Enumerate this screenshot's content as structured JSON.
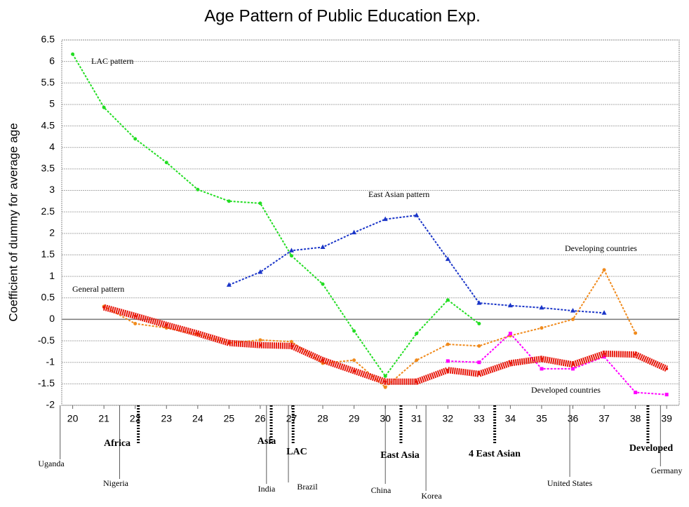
{
  "chart_data": {
    "type": "line",
    "title": "Age Pattern of Public Education Exp.",
    "y_label": "Coefficient of dummy for average age",
    "x": [
      20,
      21,
      22,
      23,
      24,
      25,
      26,
      27,
      28,
      29,
      30,
      31,
      32,
      33,
      34,
      35,
      36,
      37,
      38,
      39
    ],
    "xlim": [
      19.65,
      39.4
    ],
    "xticks": [
      20,
      21,
      22,
      23,
      24,
      25,
      26,
      27,
      28,
      29,
      30,
      31,
      32,
      33,
      34,
      35,
      36,
      37,
      38,
      39
    ],
    "ylim": [
      -2,
      6.5
    ],
    "yticks": [
      -2,
      -1.5,
      -1,
      -0.5,
      0,
      0.5,
      1,
      1.5,
      2,
      2.5,
      3,
      3.5,
      4,
      4.5,
      5,
      5.5,
      6,
      6.5
    ],
    "grid": true,
    "series": [
      {
        "name": "LAC pattern",
        "color": "#22dd22",
        "values": [
          6.17,
          4.93,
          4.2,
          3.65,
          3.02,
          2.75,
          2.7,
          1.48,
          0.82,
          -0.27,
          -1.32,
          -0.33,
          0.45,
          -0.1,
          null,
          null,
          null,
          null,
          null,
          null
        ]
      },
      {
        "name": "East Asian pattern",
        "color": "#1a35c8",
        "values": [
          null,
          null,
          null,
          null,
          null,
          0.8,
          1.1,
          1.6,
          1.68,
          2.02,
          2.33,
          2.42,
          1.4,
          0.38,
          0.32,
          0.27,
          0.2,
          0.15,
          null,
          null
        ]
      },
      {
        "name": "Developing countries",
        "color": "#f08a1c",
        "values": [
          null,
          0.3,
          -0.1,
          -0.2,
          -0.35,
          -0.55,
          -0.48,
          -0.52,
          -1.02,
          -0.95,
          -1.58,
          -0.95,
          -0.58,
          -0.62,
          -0.38,
          -0.2,
          0.0,
          1.15,
          -0.32,
          null
        ]
      },
      {
        "name": "Developed countries",
        "color": "#ff00ff",
        "values": [
          null,
          null,
          null,
          null,
          null,
          null,
          null,
          null,
          null,
          null,
          null,
          null,
          -0.97,
          -1.0,
          -0.33,
          -1.15,
          -1.15,
          -0.87,
          -1.7,
          -1.75
        ]
      },
      {
        "name": "General pattern",
        "color": "#e8180c",
        "values": [
          null,
          0.28,
          0.08,
          -0.13,
          -0.33,
          -0.55,
          -0.6,
          -0.62,
          -0.95,
          -1.2,
          -1.45,
          -1.45,
          -1.18,
          -1.27,
          -1.02,
          -0.92,
          -1.05,
          -0.8,
          -0.82,
          -1.15
        ]
      }
    ],
    "countries": [
      {
        "text": "Uganda",
        "x": 19.6
      },
      {
        "text": "Nigeria",
        "x": 21.5
      },
      {
        "text": "India",
        "x": 26.2
      },
      {
        "text": "Brazil",
        "x": 26.9
      },
      {
        "text": "China",
        "x": 30
      },
      {
        "text": "Korea",
        "x": 31.3
      },
      {
        "text": "United States",
        "x": 35.9
      },
      {
        "text": "Germany",
        "x": 38.8
      }
    ],
    "regions": [
      {
        "text": "Africa",
        "x": 22.1
      },
      {
        "text": "Asia",
        "x": 26.35
      },
      {
        "text": "LAC",
        "x": 27.05
      },
      {
        "text": "East Asia",
        "x": 30.5
      },
      {
        "text": "4 East Asian",
        "x": 33.5
      },
      {
        "text": "Developed",
        "x": 38.4
      }
    ]
  }
}
